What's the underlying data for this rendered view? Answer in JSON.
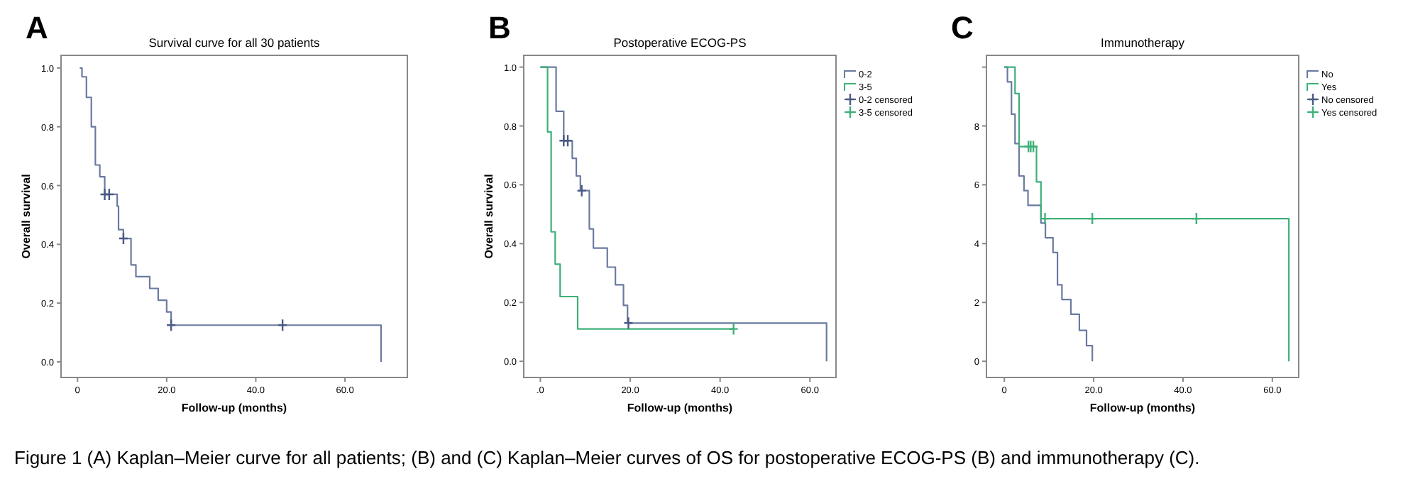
{
  "chart_data": [
    {
      "type": "step",
      "title": "Survival curve for all 30 patients",
      "xlabel": "Follow-up (months)",
      "ylabel": "Overall survival",
      "annotations": [
        "A",
        "Figure 1 (A) Kaplan–Meier curve for all patients; (B) and (C) Kaplan–Meier curves of OS for postoperative ECOG-PS (B) and immunotherapy (C)."
      ],
      "xlim": [
        -3.7,
        74
      ],
      "ylim": [
        -0.053,
        1.043
      ],
      "xticks": [
        {
          "value": 0,
          "label": "0"
        },
        {
          "value": 20,
          "label": "20.0"
        },
        {
          "value": 40,
          "label": "40.0"
        },
        {
          "value": 60,
          "label": "60.0"
        }
      ],
      "yticks": [
        {
          "value": 0,
          "label": "0.0"
        },
        {
          "value": 0.2,
          "label": "0.2"
        },
        {
          "value": 0.4,
          "label": "0.4"
        },
        {
          "value": 0.6,
          "label": "0.6"
        },
        {
          "value": 0.8,
          "label": "0.8"
        },
        {
          "value": 1,
          "label": "1.0"
        }
      ],
      "grid": false,
      "legend": false,
      "series": [
        {
          "type": "step",
          "color": "#6a7aa0",
          "x": [
            0.5,
            1,
            2,
            3.1,
            4,
            5,
            6.1,
            8.9,
            9.2,
            10.3,
            12,
            13.1,
            16.2,
            18.1,
            20,
            21,
            68.1
          ],
          "values": [
            1,
            0.97,
            0.9,
            0.8,
            0.67,
            0.63,
            0.57,
            0.53,
            0.45,
            0.42,
            0.33,
            0.29,
            0.25,
            0.21,
            0.17,
            0.125,
            0
          ]
        },
        {
          "type": "scatter",
          "marker": "cross",
          "color": "#4a5a85",
          "x": [
            6.1,
            7.1,
            10.3,
            21,
            46
          ],
          "values": [
            0.57,
            0.57,
            0.42,
            0.125,
            0.125
          ]
        }
      ]
    },
    {
      "type": "step",
      "title": "Postoperative ECOG-PS",
      "xlabel": "Follow-up (months)",
      "ylabel": "Overall survival",
      "annotations": [
        "B"
      ],
      "xlim": [
        -3.7,
        65.8
      ],
      "ylim": [
        -0.055,
        1.04
      ],
      "xticks": [
        {
          "value": 0,
          "label": ".0"
        },
        {
          "value": 20,
          "label": "20.0"
        },
        {
          "value": 40,
          "label": "40.0"
        },
        {
          "value": 60,
          "label": "60.0"
        }
      ],
      "yticks": [
        {
          "value": 0,
          "label": "0.0"
        },
        {
          "value": 0.2,
          "label": "0.2"
        },
        {
          "value": 0.4,
          "label": "0.4"
        },
        {
          "value": 0.6,
          "label": "0.6"
        },
        {
          "value": 0.8,
          "label": "0.8"
        },
        {
          "value": 1,
          "label": "1.0"
        }
      ],
      "grid": false,
      "legend": "right",
      "series": [
        {
          "type": "step",
          "name": "0-2",
          "color": "#6a7aa0",
          "x": [
            0,
            3.5,
            5.2,
            7.1,
            8,
            8.9,
            10.9,
            11.8,
            14.9,
            16.7,
            18.5,
            19.4,
            63.7
          ],
          "values": [
            1,
            0.85,
            0.75,
            0.69,
            0.63,
            0.58,
            0.45,
            0.385,
            0.32,
            0.26,
            0.19,
            0.13,
            0
          ]
        },
        {
          "type": "step",
          "name": "3-5",
          "color": "#3fb07a",
          "x": [
            0,
            1.6,
            2.4,
            3.3,
            4.4,
            8.3,
            43
          ],
          "values": [
            1,
            0.78,
            0.44,
            0.33,
            0.22,
            0.11,
            0.11
          ]
        },
        {
          "type": "scatter",
          "name": "0-2 censored",
          "marker": "cross",
          "color": "#4a5a85",
          "x": [
            5.2,
            6.1,
            9.2,
            19.6
          ],
          "values": [
            0.75,
            0.75,
            0.58,
            0.13
          ]
        },
        {
          "type": "scatter",
          "name": "3-5 censored",
          "marker": "cross",
          "color": "#3fb07a",
          "x": [
            43
          ],
          "values": [
            0.11
          ]
        }
      ]
    },
    {
      "type": "step",
      "title": "Immunotherapy",
      "xlabel": "Follow-up (months)",
      "annotations": [
        "C"
      ],
      "xlim": [
        -4,
        65.9
      ],
      "ylim": [
        -0.55,
        10.4
      ],
      "yticks": [
        {
          "value": 0,
          "label": "0"
        },
        2,
        4,
        6,
        8,
        {
          "value": 10,
          "label": null
        }
      ],
      "xticks": [
        {
          "value": 0,
          "label": "0"
        },
        {
          "value": 20,
          "label": "20.0"
        },
        {
          "value": 40,
          "label": "40.0"
        },
        {
          "value": 60,
          "label": "60.0"
        }
      ],
      "grid": false,
      "legend": "right",
      "series": [
        {
          "type": "step",
          "name": "No",
          "color": "#6a7aa0",
          "x": [
            0,
            0.7,
            1.6,
            2.4,
            3.3,
            4.4,
            5.3,
            8.2,
            9.2,
            10.9,
            11.9,
            12.9,
            14.9,
            16.8,
            18.4,
            19.7
          ],
          "values": [
            10,
            9.5,
            8.4,
            7.4,
            6.3,
            5.8,
            5.3,
            4.7,
            4.2,
            3.7,
            2.6,
            2.1,
            1.6,
            1.05,
            0.53,
            0
          ]
        },
        {
          "type": "step",
          "name": "Yes",
          "color": "#3fb07a",
          "x": [
            0,
            2.4,
            3.3,
            7.2,
            8.2,
            63.7
          ],
          "values": [
            10,
            9.1,
            7.3,
            6.1,
            4.85,
            0
          ]
        },
        {
          "type": "scatter",
          "name": "No censored",
          "marker": "cross",
          "color": "#4a5a85"
        },
        {
          "type": "scatter",
          "name": "Yes censored",
          "marker": "cross",
          "color": "#3fb07a",
          "x": [
            5.4,
            5.9,
            6.5,
            9.1,
            19.7,
            43
          ],
          "values": [
            7.3,
            7.3,
            7.3,
            4.85,
            4.85,
            4.85
          ]
        }
      ]
    }
  ]
}
